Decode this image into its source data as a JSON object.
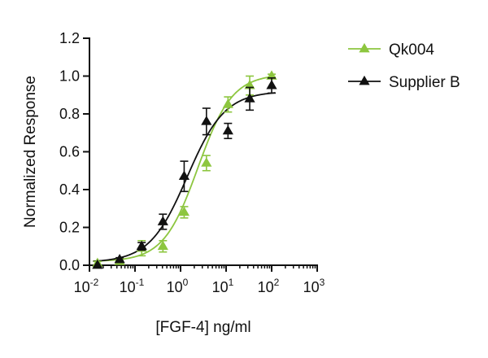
{
  "chart_data": {
    "type": "scatter",
    "xlabel": "[FGF-4] ng/ml",
    "ylabel": "Normalized Response",
    "xscale": "log",
    "xlim": [
      0.01,
      1000
    ],
    "ylim": [
      0,
      1.2
    ],
    "x_ticks": [
      {
        "base": "10",
        "exp": "-2"
      },
      {
        "base": "10",
        "exp": "-1"
      },
      {
        "base": "10",
        "exp": "0"
      },
      {
        "base": "10",
        "exp": "1"
      },
      {
        "base": "10",
        "exp": "2"
      },
      {
        "base": "10",
        "exp": "3"
      }
    ],
    "y_ticks": [
      "0.0",
      "0.2",
      "0.4",
      "0.6",
      "0.8",
      "1.0",
      "1.2"
    ],
    "grid": false,
    "legend_position": "top-right",
    "series": [
      {
        "name": "Qk004",
        "color": "#8dc63f",
        "marker": "triangle",
        "x": [
          0.015,
          0.046,
          0.14,
          0.41,
          1.2,
          3.7,
          11,
          33,
          100
        ],
        "y": [
          0.01,
          0.02,
          0.09,
          0.1,
          0.28,
          0.54,
          0.85,
          0.95,
          1.0
        ],
        "err": [
          0.01,
          0.01,
          0.04,
          0.03,
          0.03,
          0.04,
          0.04,
          0.05,
          0.01
        ],
        "fit": {
          "bottom": 0.02,
          "top": 1.01,
          "ec50": 2.4,
          "hill": 1.15
        }
      },
      {
        "name": "Supplier B",
        "color": "#111111",
        "marker": "triangle",
        "x": [
          0.015,
          0.046,
          0.14,
          0.41,
          1.2,
          3.7,
          11,
          33,
          100
        ],
        "y": [
          0.0,
          0.03,
          0.1,
          0.23,
          0.47,
          0.76,
          0.71,
          0.88,
          0.95
        ],
        "err": [
          0.0,
          0.01,
          0.02,
          0.04,
          0.08,
          0.07,
          0.04,
          0.06,
          0.04
        ],
        "fit": {
          "bottom": 0.015,
          "top": 0.92,
          "ec50": 1.4,
          "hill": 1.05
        }
      }
    ]
  }
}
